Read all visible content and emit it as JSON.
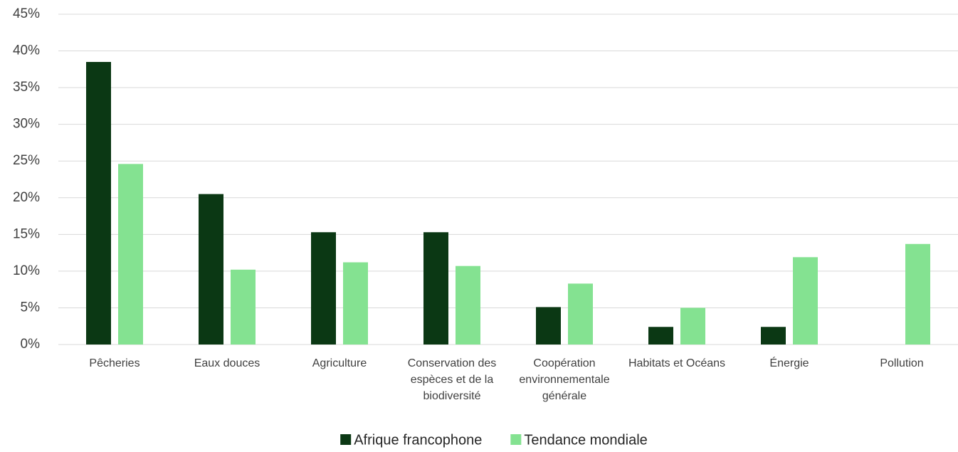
{
  "chart_data": {
    "type": "bar",
    "categories": [
      "Pêcheries",
      "Eaux douces",
      "Agriculture",
      "Conservation des espèces et de la biodiversité",
      "Coopération environnementale générale",
      "Habitats et Océans",
      "Énergie",
      "Pollution"
    ],
    "series": [
      {
        "name": "Afrique francophone",
        "color": "#0b3814",
        "values": [
          38.5,
          20.5,
          15.3,
          15.3,
          5.1,
          2.4,
          2.4,
          0
        ]
      },
      {
        "name": "Tendance mondiale",
        "color": "#84e291",
        "values": [
          24.6,
          10.2,
          11.2,
          10.7,
          8.3,
          5.0,
          11.9,
          13.7
        ]
      }
    ],
    "ylim": [
      0,
      45
    ],
    "yticks": [
      {
        "value": 0,
        "label": "0%"
      },
      {
        "value": 5,
        "label": "5%"
      },
      {
        "value": 10,
        "label": "10%"
      },
      {
        "value": 15,
        "label": "15%"
      },
      {
        "value": 20,
        "label": "20%"
      },
      {
        "value": 25,
        "label": "25%"
      },
      {
        "value": 30,
        "label": "30%"
      },
      {
        "value": 35,
        "label": "35%"
      },
      {
        "value": 40,
        "label": "40%"
      },
      {
        "value": 45,
        "label": "45%"
      }
    ],
    "grid": true,
    "legend": "bottom"
  }
}
